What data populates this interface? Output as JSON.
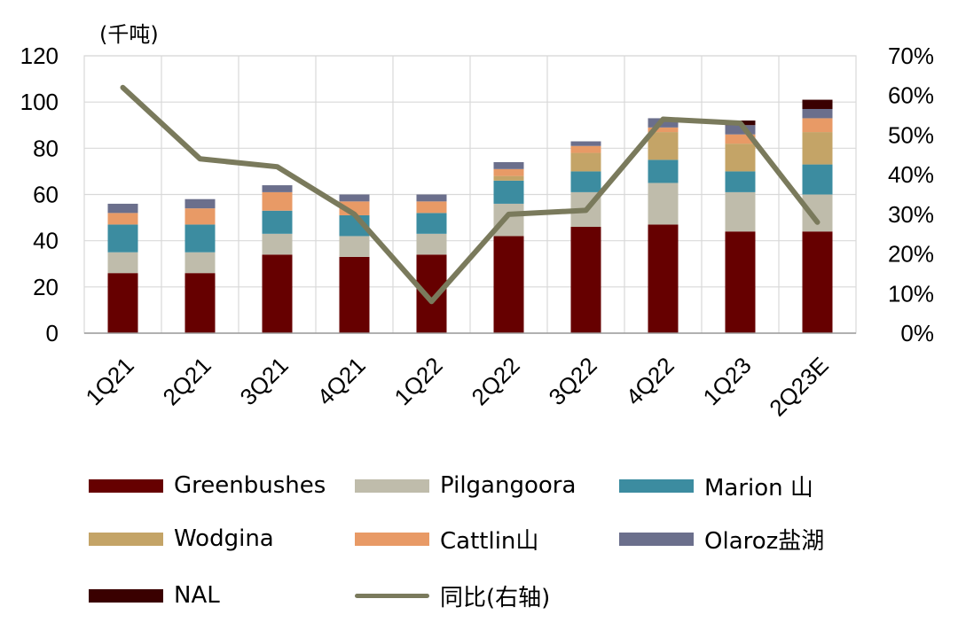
{
  "chart_data": {
    "type": "stacked_bar_with_line",
    "left_axis_unit": "(千吨)",
    "categories": [
      "1Q21",
      "2Q21",
      "3Q21",
      "4Q21",
      "1Q22",
      "2Q22",
      "3Q22",
      "4Q22",
      "1Q23",
      "2Q23E"
    ],
    "ylim": [
      0,
      120
    ],
    "yticks": [
      "0",
      "20",
      "40",
      "60",
      "80",
      "100",
      "120"
    ],
    "y2lim": [
      0,
      70
    ],
    "y2ticks": [
      "0%",
      "10%",
      "20%",
      "30%",
      "40%",
      "50%",
      "60%",
      "70%"
    ],
    "series": [
      {
        "name": "Greenbushes",
        "color": "#660000",
        "values": [
          26,
          26,
          34,
          33,
          34,
          42,
          46,
          47,
          44,
          44
        ]
      },
      {
        "name": "Pilgangoora",
        "color": "#bfbcab",
        "values": [
          9,
          9,
          9,
          9,
          9,
          14,
          15,
          18,
          17,
          16
        ]
      },
      {
        "name": "Marion 山",
        "color": "#3c8ca0",
        "values": [
          12,
          12,
          10,
          9,
          9,
          10,
          9,
          10,
          9,
          13
        ]
      },
      {
        "name": "Wodgina",
        "color": "#c4a467",
        "values": [
          0,
          0,
          0,
          0,
          0,
          2,
          8,
          12,
          12,
          14
        ]
      },
      {
        "name": "Cattlin山",
        "color": "#e89a66",
        "values": [
          5,
          7,
          8,
          6,
          5,
          3,
          3,
          2,
          4,
          6
        ]
      },
      {
        "name": "Olaroz盐湖",
        "color": "#6b6f8c",
        "values": [
          4,
          4,
          3,
          3,
          3,
          3,
          2,
          4,
          4,
          4
        ]
      },
      {
        "name": "NAL",
        "color": "#3a0000",
        "values": [
          0,
          0,
          0,
          0,
          0,
          0,
          0,
          0,
          2,
          4
        ]
      }
    ],
    "line": {
      "name": "同比(右轴)",
      "color": "#7a7a5c",
      "axis": "right",
      "values": [
        62,
        44,
        42,
        30,
        8,
        30,
        31,
        54,
        53,
        28
      ]
    }
  }
}
